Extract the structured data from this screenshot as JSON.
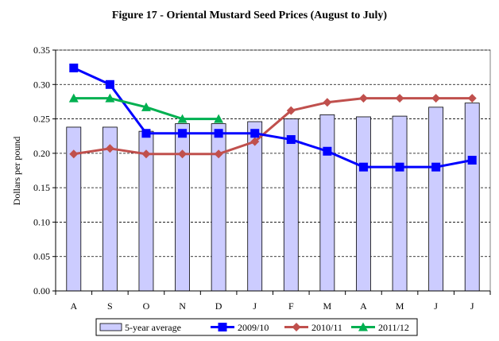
{
  "chart_data": {
    "type": "bar+line",
    "title": "Figure 17 - Oriental Mustard Seed Prices (August to July)",
    "xlabel": "",
    "ylabel": "Dollars per pound",
    "categories": [
      "A",
      "S",
      "O",
      "N",
      "D",
      "J",
      "F",
      "M",
      "A",
      "M",
      "J",
      "J"
    ],
    "ylim": [
      0,
      0.35
    ],
    "yticks": [
      "0.00",
      "0.05",
      "0.10",
      "0.15",
      "0.20",
      "0.25",
      "0.30",
      "0.35"
    ],
    "grid": "horizontal dashed",
    "legend_position": "bottom",
    "bar_series": {
      "name": "5-year average",
      "color": "#ccccff",
      "values": [
        0.238,
        0.238,
        0.232,
        0.243,
        0.243,
        0.246,
        0.25,
        0.256,
        0.253,
        0.254,
        0.267,
        0.273
      ]
    },
    "series": [
      {
        "name": "2009/10",
        "color": "#0000ff",
        "marker": "square",
        "values": [
          0.324,
          0.3,
          0.229,
          0.229,
          0.229,
          0.229,
          0.22,
          0.203,
          0.18,
          0.18,
          0.18,
          0.19
        ]
      },
      {
        "name": "2010/11",
        "color": "#c0504d",
        "marker": "diamond",
        "values": [
          0.199,
          0.207,
          0.199,
          0.199,
          0.199,
          0.217,
          0.262,
          0.274,
          0.28,
          0.28,
          0.28,
          0.28
        ]
      },
      {
        "name": "2011/12",
        "color": "#00b050",
        "marker": "triangle",
        "values": [
          0.28,
          0.28,
          0.267,
          0.25,
          0.25,
          null,
          null,
          null,
          null,
          null,
          null,
          null
        ]
      }
    ]
  }
}
